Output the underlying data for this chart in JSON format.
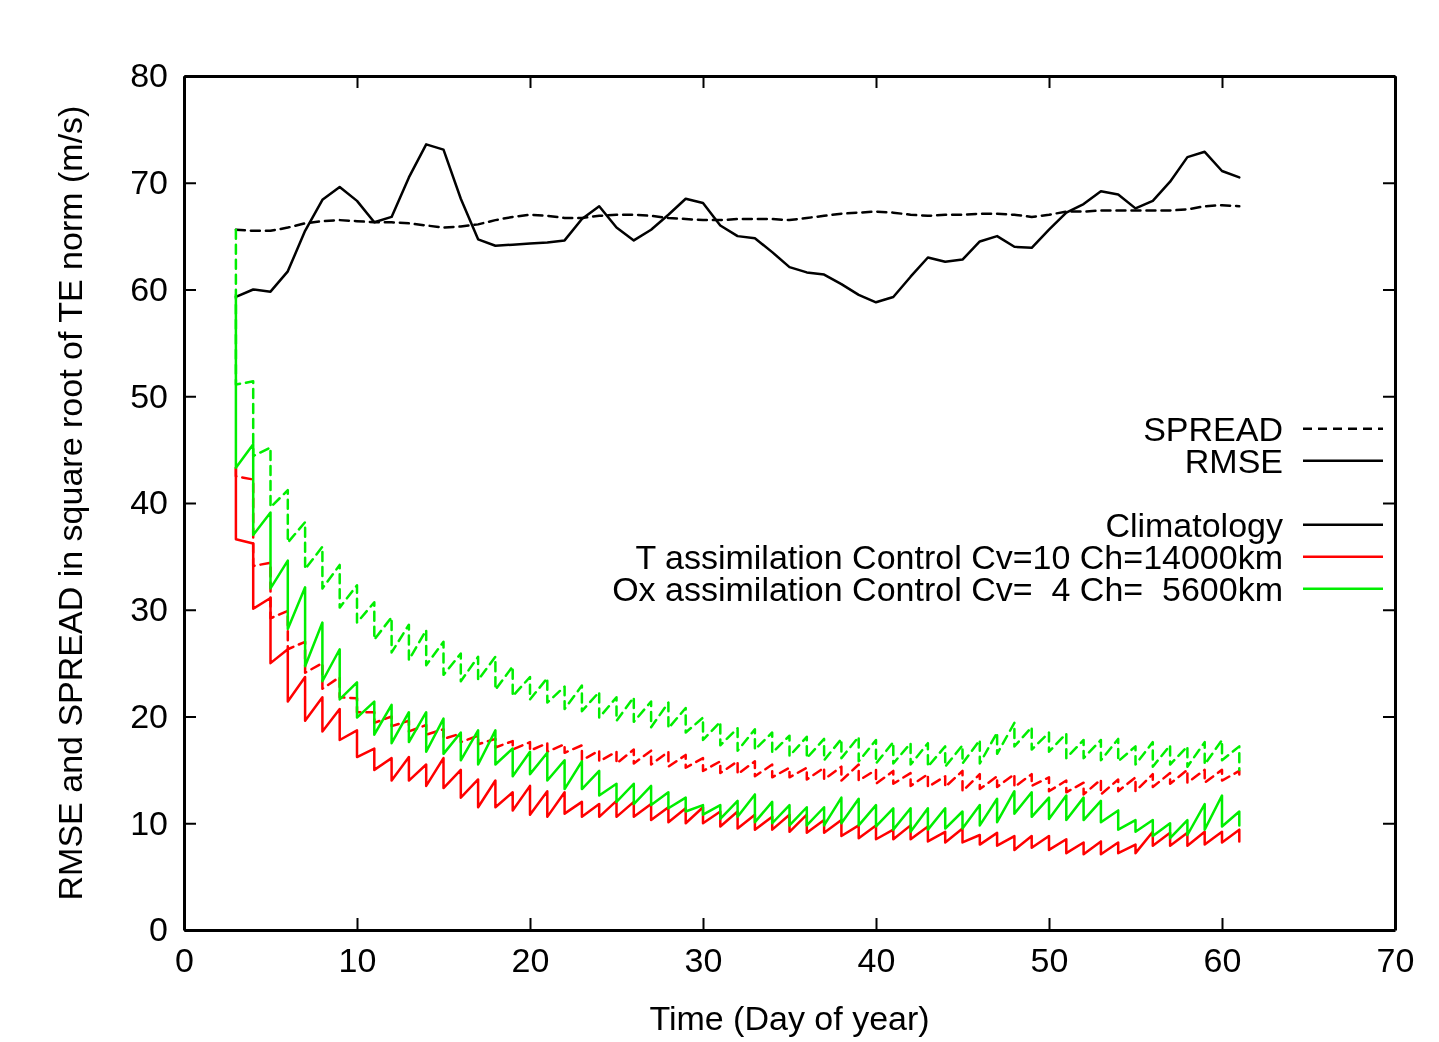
{
  "chart_data": {
    "type": "line",
    "xlabel": "Time (Day of year)",
    "ylabel": "RMSE and SPREAD in square root of TE norm (m/s)",
    "xlim": [
      0,
      70
    ],
    "xticks": [
      0,
      10,
      20,
      30,
      40,
      50,
      60,
      70
    ],
    "ylim": [
      0,
      80
    ],
    "yticks": [
      0,
      10,
      20,
      30,
      40,
      50,
      60,
      70,
      80
    ],
    "grid": false,
    "legend": "right",
    "marker": "none",
    "annotations": [
      "SPREAD",
      "RMSE"
    ],
    "series": [
      {
        "color": "#000000",
        "line_style": "dashed",
        "x": [
          3,
          4,
          5,
          6,
          7,
          8,
          9,
          10,
          11,
          12,
          13,
          14,
          15,
          16,
          17,
          18,
          19,
          20,
          21,
          22,
          23,
          24,
          25,
          26,
          27,
          28,
          29,
          30,
          31,
          32,
          33,
          34,
          35,
          36,
          37,
          38,
          39,
          40,
          41,
          42,
          43,
          44,
          45,
          46,
          47,
          48,
          49,
          50,
          51,
          52,
          53,
          54,
          55,
          56,
          57,
          58,
          59,
          60,
          61
        ],
        "values": [
          65.6,
          65.5,
          65.5,
          65.8,
          66.2,
          66.4,
          66.5,
          66.4,
          66.3,
          66.3,
          66.2,
          66.0,
          65.8,
          65.9,
          66.1,
          66.5,
          66.8,
          67.0,
          66.9,
          66.7,
          66.7,
          66.9,
          67.0,
          67.0,
          66.9,
          66.7,
          66.6,
          66.5,
          66.5,
          66.6,
          66.6,
          66.6,
          66.5,
          66.7,
          66.9,
          67.1,
          67.2,
          67.3,
          67.2,
          67.0,
          66.9,
          67.0,
          67.0,
          67.1,
          67.1,
          67.0,
          66.8,
          67.0,
          67.3,
          67.3,
          67.4,
          67.4,
          67.4,
          67.4,
          67.4,
          67.5,
          67.8,
          67.9,
          67.8
        ]
      },
      {
        "name": "Climatology",
        "color": "#000000",
        "line_style": "solid",
        "x": [
          3,
          4,
          5,
          6,
          7,
          8,
          9,
          10,
          11,
          12,
          13,
          14,
          15,
          16,
          17,
          18,
          19,
          20,
          21,
          22,
          23,
          24,
          25,
          26,
          27,
          28,
          29,
          30,
          31,
          32,
          33,
          34,
          35,
          36,
          37,
          38,
          39,
          40,
          41,
          42,
          43,
          44,
          45,
          46,
          47,
          48,
          49,
          50,
          51,
          52,
          53,
          54,
          55,
          56,
          57,
          58,
          59,
          60,
          61
        ],
        "values": [
          59.3,
          60.0,
          59.8,
          61.7,
          65.5,
          68.4,
          69.6,
          68.3,
          66.3,
          66.8,
          70.5,
          73.6,
          73.1,
          68.5,
          64.7,
          64.1,
          64.2,
          64.3,
          64.4,
          64.6,
          66.6,
          67.8,
          65.8,
          64.6,
          65.6,
          67.0,
          68.5,
          68.1,
          66.0,
          65.0,
          64.8,
          63.5,
          62.1,
          61.6,
          61.4,
          60.5,
          59.5,
          58.8,
          59.3,
          61.2,
          63.0,
          62.6,
          62.8,
          64.5,
          65.0,
          64.0,
          63.9,
          65.6,
          67.2,
          68.0,
          69.2,
          68.9,
          67.6,
          68.3,
          70.1,
          72.4,
          72.9,
          71.1,
          70.5
        ]
      },
      {
        "color": "#ff0000",
        "line_style": "dashed",
        "x": [
          3,
          3,
          4,
          4,
          5,
          5,
          6,
          6,
          7,
          7,
          8,
          8,
          9,
          9,
          10,
          10,
          11,
          11,
          12,
          12,
          13,
          13,
          14,
          14,
          15,
          15,
          16,
          16,
          17,
          17,
          18,
          18,
          19,
          19,
          20,
          20,
          21,
          21,
          22,
          22,
          23,
          23,
          24,
          24,
          25,
          25,
          26,
          26,
          27,
          27,
          28,
          28,
          29,
          29,
          30,
          30,
          31,
          31,
          32,
          32,
          33,
          33,
          34,
          34,
          35,
          35,
          36,
          36,
          37,
          37,
          38,
          38,
          39,
          39,
          40,
          40,
          41,
          41,
          42,
          42,
          43,
          43,
          44,
          44,
          45,
          45,
          46,
          46,
          47,
          47,
          48,
          48,
          49,
          49,
          50,
          50,
          51,
          51,
          52,
          52,
          53,
          53,
          54,
          54,
          55,
          55,
          56,
          56,
          57,
          57,
          58,
          58,
          59,
          59,
          60,
          60,
          61,
          61
        ],
        "values": [
          43.3,
          42.5,
          42.2,
          34.1,
          34.4,
          29.2,
          29.9,
          26.3,
          27.0,
          24.1,
          25.0,
          22.6,
          23.7,
          21.8,
          21.7,
          20.4,
          20.4,
          19.4,
          20.0,
          19.1,
          19.6,
          18.6,
          19.2,
          18.3,
          18.8,
          17.9,
          18.4,
          17.6,
          18.2,
          17.4,
          17.9,
          17.1,
          17.7,
          16.9,
          17.6,
          16.8,
          17.5,
          16.7,
          17.4,
          16.6,
          17.3,
          15.9,
          16.8,
          15.8,
          16.7,
          15.6,
          16.9,
          15.6,
          16.8,
          15.5,
          16.7,
          15.3,
          16.4,
          15.2,
          16.1,
          14.9,
          15.8,
          14.7,
          15.8,
          14.6,
          15.8,
          14.4,
          15.5,
          14.3,
          15.2,
          14.3,
          15.2,
          14.1,
          15.2,
          14.1,
          15.3,
          14.0,
          15.5,
          14.0,
          15.0,
          13.7,
          14.9,
          13.7,
          14.7,
          13.5,
          14.6,
          13.4,
          14.4,
          13.4,
          14.9,
          13.0,
          14.6,
          13.2,
          14.4,
          13.4,
          14.6,
          13.4,
          14.6,
          13.5,
          14.3,
          13.0,
          14.0,
          12.9,
          13.8,
          12.7,
          14.1,
          12.7,
          14.1,
          13.0,
          14.3,
          13.0,
          14.6,
          13.4,
          14.7,
          13.7,
          15.0,
          13.8,
          15.0,
          13.8,
          15.0,
          14.0,
          14.9,
          14.3
        ]
      },
      {
        "name": "T assimilation Control Cv=10 Ch=14000km",
        "color": "#ff0000",
        "line_style": "solid",
        "x": [
          3,
          3,
          4,
          4,
          5,
          5,
          6,
          6,
          7,
          7,
          8,
          8,
          9,
          9,
          10,
          10,
          11,
          11,
          12,
          12,
          13,
          13,
          14,
          14,
          15,
          15,
          16,
          16,
          17,
          17,
          18,
          18,
          19,
          19,
          20,
          20,
          21,
          21,
          22,
          22,
          23,
          23,
          24,
          24,
          25,
          25,
          26,
          26,
          27,
          27,
          28,
          28,
          29,
          29,
          30,
          30,
          31,
          31,
          32,
          32,
          33,
          33,
          34,
          34,
          35,
          35,
          36,
          36,
          37,
          37,
          38,
          38,
          39,
          39,
          40,
          40,
          41,
          41,
          42,
          42,
          43,
          43,
          44,
          44,
          45,
          45,
          46,
          46,
          47,
          47,
          48,
          48,
          49,
          49,
          50,
          50,
          51,
          51,
          52,
          52,
          53,
          53,
          54,
          54,
          55,
          55,
          56,
          56,
          57,
          57,
          58,
          58,
          59,
          59,
          60,
          60,
          61,
          61
        ],
        "values": [
          43.3,
          36.6,
          36.2,
          30.1,
          31.1,
          25.0,
          26.3,
          21.4,
          23.7,
          19.6,
          21.8,
          18.6,
          20.7,
          17.8,
          18.7,
          16.2,
          17.0,
          15.0,
          16.1,
          14.0,
          16.2,
          14.0,
          15.5,
          13.5,
          16.1,
          13.3,
          15.0,
          12.4,
          14.1,
          11.5,
          14.0,
          11.5,
          12.9,
          11.2,
          13.5,
          10.8,
          13.0,
          10.6,
          12.9,
          10.9,
          12.0,
          10.6,
          11.8,
          10.6,
          12.1,
          10.6,
          12.0,
          10.6,
          11.8,
          10.3,
          11.5,
          10.1,
          11.4,
          10.0,
          11.5,
          10.0,
          11.1,
          9.7,
          11.1,
          9.5,
          10.8,
          9.4,
          10.6,
          9.4,
          10.8,
          9.2,
          10.8,
          9.1,
          10.3,
          9.1,
          10.3,
          8.8,
          9.8,
          8.6,
          9.8,
          8.5,
          9.4,
          8.5,
          9.8,
          8.5,
          9.7,
          8.3,
          9.2,
          8.2,
          9.5,
          8.2,
          8.9,
          8.0,
          9.1,
          7.9,
          8.8,
          7.5,
          8.8,
          7.7,
          8.8,
          7.5,
          8.5,
          7.2,
          8.2,
          7.1,
          8.3,
          7.1,
          8.2,
          7.2,
          8.0,
          7.2,
          9.2,
          7.9,
          9.1,
          7.9,
          9.1,
          7.9,
          9.2,
          8.0,
          9.2,
          8.2,
          9.4,
          8.3
        ]
      },
      {
        "color": "#00ee00",
        "line_style": "dashed",
        "x": [
          3,
          3,
          4,
          4,
          5,
          5,
          6,
          6,
          7,
          7,
          8,
          8,
          9,
          9,
          10,
          10,
          11,
          11,
          12,
          12,
          13,
          13,
          14,
          14,
          15,
          15,
          16,
          16,
          17,
          17,
          18,
          18,
          19,
          19,
          20,
          20,
          21,
          21,
          22,
          22,
          23,
          23,
          24,
          24,
          25,
          25,
          26,
          26,
          27,
          27,
          28,
          28,
          29,
          29,
          30,
          30,
          31,
          31,
          32,
          32,
          33,
          33,
          34,
          34,
          35,
          35,
          36,
          36,
          37,
          37,
          38,
          38,
          39,
          39,
          40,
          40,
          41,
          41,
          42,
          42,
          43,
          43,
          44,
          44,
          45,
          45,
          46,
          46,
          47,
          47,
          48,
          48,
          49,
          49,
          50,
          50,
          51,
          51,
          52,
          52,
          53,
          53,
          54,
          54,
          55,
          55,
          56,
          56,
          57,
          57,
          58,
          58,
          59,
          59,
          60,
          60,
          61,
          61
        ],
        "values": [
          65.6,
          51.1,
          51.4,
          44.4,
          45.2,
          39.6,
          41.2,
          36.3,
          38.2,
          33.8,
          35.9,
          32.0,
          34.2,
          30.2,
          32.3,
          28.8,
          30.7,
          27.2,
          29.3,
          26.0,
          28.6,
          25.3,
          28.1,
          24.8,
          27.0,
          23.9,
          25.9,
          23.3,
          25.6,
          23.4,
          25.6,
          22.5,
          24.7,
          21.9,
          23.7,
          21.6,
          23.6,
          21.3,
          22.8,
          20.7,
          22.9,
          20.5,
          22.3,
          19.9,
          21.8,
          19.6,
          21.8,
          19.5,
          21.4,
          19.0,
          21.3,
          18.9,
          20.8,
          18.5,
          19.9,
          17.8,
          19.5,
          17.3,
          18.9,
          16.8,
          18.8,
          16.9,
          18.5,
          16.6,
          18.2,
          16.3,
          18.1,
          16.1,
          17.9,
          15.9,
          17.9,
          16.1,
          18.1,
          15.8,
          17.8,
          15.6,
          17.6,
          15.6,
          17.5,
          15.5,
          17.5,
          15.3,
          17.2,
          15.3,
          17.3,
          15.6,
          17.8,
          15.6,
          18.5,
          16.5,
          19.4,
          17.2,
          19.0,
          16.9,
          18.5,
          16.7,
          18.4,
          16.1,
          17.8,
          16.1,
          17.8,
          15.9,
          17.9,
          15.8,
          17.2,
          15.5,
          17.6,
          15.3,
          17.3,
          15.5,
          17.2,
          15.3,
          17.6,
          15.5,
          17.8,
          15.9,
          17.2,
          15.0
        ]
      },
      {
        "name": "Ox assimilation Control Cv=  4 Ch=  5600km",
        "color": "#00ee00",
        "line_style": "solid",
        "x": [
          3,
          3,
          4,
          4,
          5,
          5,
          6,
          6,
          7,
          7,
          8,
          8,
          9,
          9,
          10,
          10,
          11,
          11,
          12,
          12,
          13,
          13,
          14,
          14,
          15,
          15,
          16,
          16,
          17,
          17,
          18,
          18,
          19,
          19,
          20,
          20,
          21,
          21,
          22,
          22,
          23,
          23,
          24,
          24,
          25,
          25,
          26,
          26,
          27,
          27,
          28,
          28,
          29,
          29,
          30,
          30,
          31,
          31,
          32,
          32,
          33,
          33,
          34,
          34,
          35,
          35,
          36,
          36,
          37,
          37,
          38,
          38,
          39,
          39,
          40,
          40,
          41,
          41,
          42,
          42,
          43,
          43,
          44,
          44,
          45,
          45,
          46,
          46,
          47,
          47,
          48,
          48,
          49,
          49,
          50,
          50,
          51,
          51,
          52,
          52,
          53,
          53,
          54,
          54,
          55,
          55,
          56,
          56,
          57,
          57,
          58,
          58,
          59,
          59,
          60,
          60,
          61,
          61
        ],
        "values": [
          59.5,
          43.3,
          45.5,
          37.0,
          39.1,
          32.0,
          34.6,
          28.2,
          32.1,
          24.7,
          28.8,
          23.3,
          26.3,
          21.6,
          23.2,
          19.9,
          21.4,
          18.3,
          21.1,
          17.5,
          20.4,
          17.6,
          20.4,
          16.7,
          19.8,
          16.5,
          18.5,
          15.9,
          18.7,
          15.5,
          18.7,
          15.5,
          17.0,
          14.4,
          16.7,
          14.6,
          16.6,
          14.0,
          15.9,
          13.2,
          15.8,
          13.2,
          14.9,
          12.6,
          13.7,
          12.0,
          13.7,
          11.8,
          13.5,
          11.7,
          12.9,
          11.4,
          12.4,
          11.1,
          11.7,
          10.8,
          11.7,
          10.4,
          12.1,
          10.6,
          12.7,
          10.1,
          12.0,
          10.0,
          11.7,
          9.8,
          11.5,
          9.8,
          11.5,
          9.8,
          12.4,
          10.0,
          12.3,
          9.8,
          11.7,
          9.7,
          11.4,
          9.4,
          11.4,
          9.2,
          11.4,
          9.4,
          11.4,
          9.5,
          11.1,
          9.5,
          11.7,
          9.8,
          12.3,
          10.1,
          13.0,
          10.9,
          12.9,
          10.6,
          12.4,
          10.4,
          12.6,
          10.3,
          12.4,
          10.3,
          12.1,
          10.1,
          11.2,
          9.4,
          10.3,
          9.2,
          10.3,
          8.8,
          10.0,
          8.6,
          10.3,
          8.9,
          11.8,
          9.4,
          12.6,
          9.7,
          11.1,
          9.8
        ]
      }
    ]
  }
}
